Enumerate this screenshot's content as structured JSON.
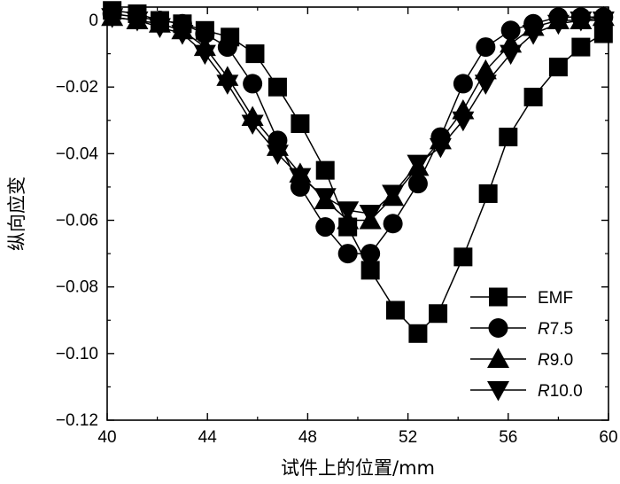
{
  "chart_data": {
    "type": "line",
    "xlabel": "试件上的位置/mm",
    "ylabel": "纵向应变",
    "xlim": [
      40,
      60
    ],
    "ylim": [
      -0.12,
      0.004
    ],
    "xticks": [
      40,
      44,
      48,
      52,
      56,
      60
    ],
    "xtick_labels": [
      "40",
      "44",
      "48",
      "52",
      "56",
      "60"
    ],
    "yticks": [
      0,
      -0.02,
      -0.04,
      -0.06,
      -0.08,
      -0.1,
      -0.12
    ],
    "ytick_labels": [
      "0",
      "−0.02",
      "−0.04",
      "−0.06",
      "−0.08",
      "−0.10",
      "−0.12"
    ],
    "legend_position": "bottom-right",
    "series": [
      {
        "name": "EMF",
        "prefix": "",
        "suffix": "EMF",
        "marker": "square",
        "x": [
          40.2,
          41.2,
          42.1,
          43.0,
          43.9,
          44.9,
          45.9,
          46.8,
          47.7,
          48.7,
          49.6,
          50.5,
          51.5,
          52.4,
          53.2,
          54.2,
          55.2,
          56.0,
          57.0,
          58.0,
          58.9,
          59.8
        ],
        "y": [
          0.003,
          0.002,
          0.0,
          -0.001,
          -0.003,
          -0.005,
          -0.01,
          -0.02,
          -0.031,
          -0.045,
          -0.062,
          -0.075,
          -0.087,
          -0.094,
          -0.088,
          -0.071,
          -0.052,
          -0.035,
          -0.023,
          -0.014,
          -0.008,
          -0.004
        ]
      },
      {
        "name": "R7.5",
        "prefix": "R",
        "suffix": "7.5",
        "marker": "circle",
        "x": [
          40.2,
          41.2,
          42.1,
          43.0,
          43.9,
          44.8,
          45.8,
          46.8,
          47.7,
          48.7,
          49.6,
          50.5,
          51.4,
          52.4,
          53.3,
          54.2,
          55.1,
          56.1,
          57.0,
          58.0,
          58.9,
          59.8
        ],
        "y": [
          0.002,
          0.001,
          0.0,
          -0.001,
          -0.004,
          -0.008,
          -0.019,
          -0.036,
          -0.05,
          -0.062,
          -0.07,
          -0.07,
          -0.061,
          -0.049,
          -0.035,
          -0.019,
          -0.008,
          -0.003,
          -0.001,
          0.001,
          0.001,
          0.001
        ]
      },
      {
        "name": "R9.0",
        "prefix": "R",
        "suffix": "9.0",
        "marker": "triangle-up",
        "x": [
          40.2,
          41.2,
          42.1,
          43.0,
          43.9,
          44.8,
          45.8,
          46.8,
          47.7,
          48.7,
          49.6,
          50.5,
          51.4,
          52.4,
          53.3,
          54.2,
          55.1,
          56.1,
          57.0,
          58.0,
          58.9,
          59.8
        ],
        "y": [
          0.001,
          0.0,
          -0.001,
          -0.003,
          -0.008,
          -0.017,
          -0.029,
          -0.038,
          -0.046,
          -0.054,
          -0.06,
          -0.06,
          -0.053,
          -0.044,
          -0.036,
          -0.027,
          -0.015,
          -0.007,
          -0.002,
          0.0,
          0.0,
          0.001
        ]
      },
      {
        "name": "R10.0",
        "prefix": "R",
        "suffix": "10.0",
        "marker": "triangle-down",
        "x": [
          40.2,
          41.2,
          42.1,
          43.0,
          43.9,
          44.8,
          45.8,
          46.8,
          47.7,
          48.7,
          49.6,
          50.5,
          51.4,
          52.4,
          53.3,
          54.2,
          55.1,
          56.1,
          57.0,
          58.0,
          58.9,
          59.8
        ],
        "y": [
          0.001,
          0.0,
          -0.002,
          -0.004,
          -0.01,
          -0.019,
          -0.031,
          -0.04,
          -0.047,
          -0.053,
          -0.057,
          -0.058,
          -0.052,
          -0.043,
          -0.038,
          -0.03,
          -0.019,
          -0.01,
          -0.004,
          -0.001,
          0.0,
          0.0
        ]
      }
    ]
  }
}
